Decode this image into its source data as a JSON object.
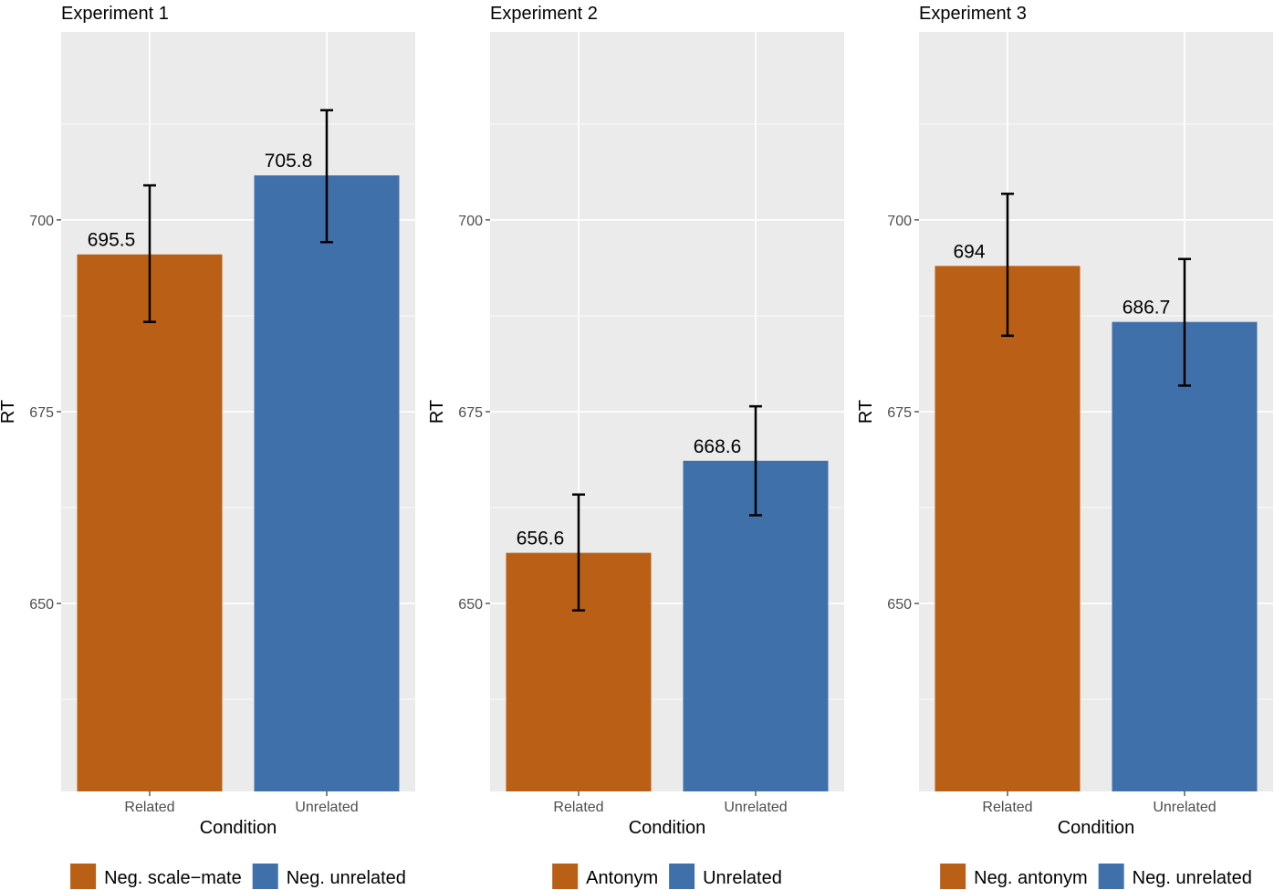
{
  "chart_data": [
    {
      "type": "bar",
      "title": "Experiment 1",
      "xlabel": "Condition",
      "ylabel": "RT",
      "categories": [
        "Related",
        "Unrelated"
      ],
      "values": [
        695.5,
        705.8
      ],
      "value_labels": [
        "695.5",
        "705.8"
      ],
      "error_low": [
        686.7,
        697.1
      ],
      "error_high": [
        704.5,
        714.3
      ],
      "colors": [
        "#BA5F16",
        "#4070AA"
      ],
      "legend": [
        "Neg. scale−mate",
        "Neg. unrelated"
      ],
      "yticks": [
        650,
        675,
        700
      ],
      "ytick_labels": [
        "650",
        "675",
        "700"
      ],
      "ylim": [
        625.5,
        724.5
      ],
      "grid": true,
      "legend_position": "bottom"
    },
    {
      "type": "bar",
      "title": "Experiment 2",
      "xlabel": "Condition",
      "ylabel": "RT",
      "categories": [
        "Related",
        "Unrelated"
      ],
      "values": [
        656.6,
        668.6
      ],
      "value_labels": [
        "656.6",
        "668.6"
      ],
      "error_low": [
        649.1,
        661.5
      ],
      "error_high": [
        664.2,
        675.7
      ],
      "colors": [
        "#BA5F16",
        "#4070AA"
      ],
      "legend": [
        "Antonym",
        "Unrelated"
      ],
      "yticks": [
        650,
        675,
        700
      ],
      "ytick_labels": [
        "650",
        "675",
        "700"
      ],
      "ylim": [
        625.5,
        724.5
      ],
      "grid": true,
      "legend_position": "bottom"
    },
    {
      "type": "bar",
      "title": "Experiment 3",
      "xlabel": "Condition",
      "ylabel": "RT",
      "categories": [
        "Related",
        "Unrelated"
      ],
      "values": [
        694,
        686.7
      ],
      "value_labels": [
        "694",
        "686.7"
      ],
      "error_low": [
        684.9,
        678.4
      ],
      "error_high": [
        703.4,
        694.9
      ],
      "colors": [
        "#BA5F16",
        "#4070AA"
      ],
      "legend": [
        "Neg. antonym",
        "Neg. unrelated"
      ],
      "yticks": [
        650,
        675,
        700
      ],
      "ytick_labels": [
        "650",
        "675",
        "700"
      ],
      "ylim": [
        625.5,
        724.5
      ],
      "grid": true,
      "legend_position": "bottom"
    }
  ]
}
